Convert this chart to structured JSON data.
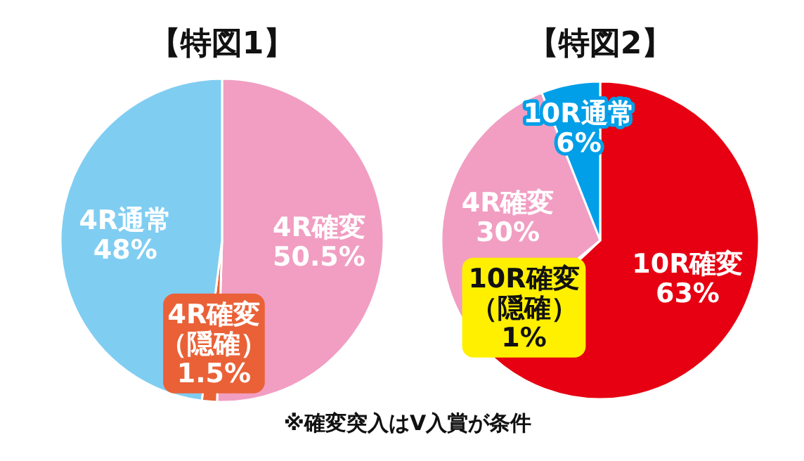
{
  "chart_data": [
    {
      "type": "pie",
      "title": "【特図1】",
      "categories": [
        "4R確変",
        "4R確変（隠確）",
        "4R通常"
      ],
      "values": [
        50.5,
        1.5,
        48
      ],
      "colors": [
        "#f19ec2",
        "#ea6137",
        "#80cdf2"
      ],
      "value_labels": [
        "50.5%",
        "1.5%",
        "48%"
      ]
    },
    {
      "type": "pie",
      "title": "【特図2】",
      "categories": [
        "10R確変",
        "10R確変（隠確）",
        "4R確変",
        "10R通常"
      ],
      "values": [
        63,
        1,
        30,
        6
      ],
      "colors": [
        "#e60012",
        "#fff000",
        "#f19ec2",
        "#009fe8"
      ],
      "value_labels": [
        "63%",
        "1%",
        "30%",
        "6%"
      ],
      "annotations": [
        "※確変突入はV入賞が条件"
      ]
    }
  ]
}
